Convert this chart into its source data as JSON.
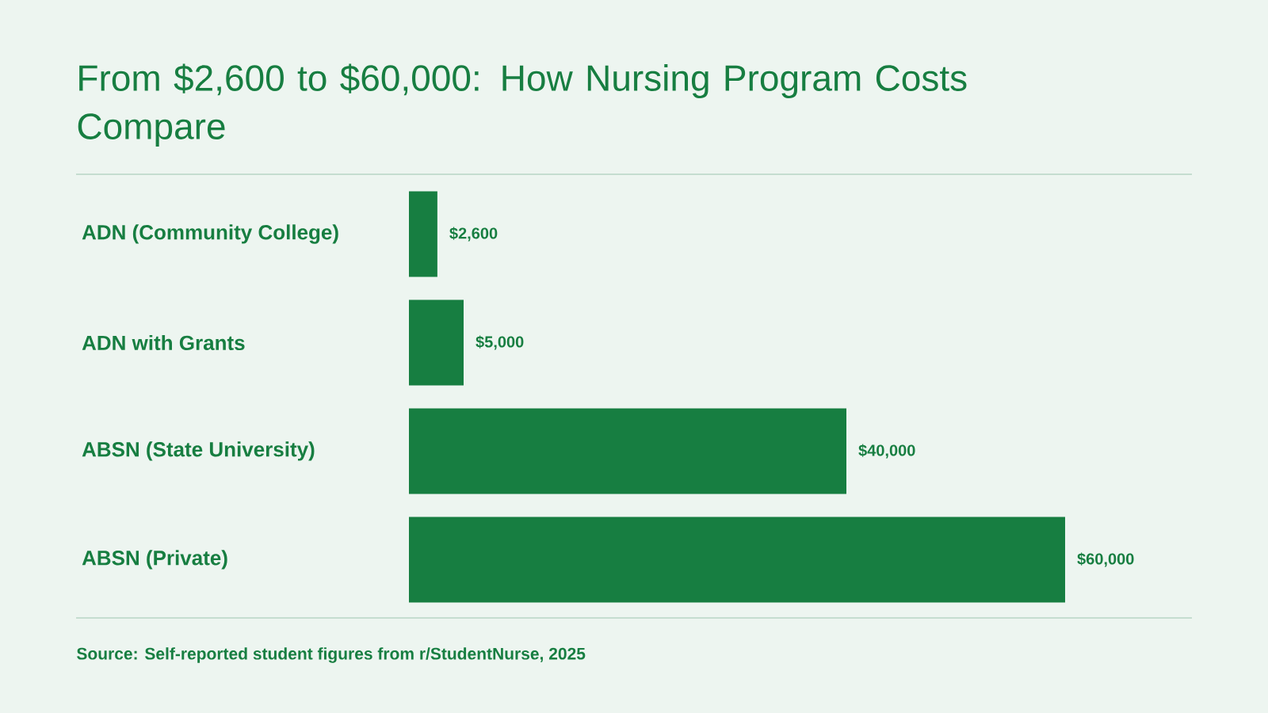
{
  "chart_data": {
    "type": "bar",
    "orientation": "horizontal",
    "title": "From $2,600 to $60,000: How Nursing Program Costs Compare",
    "categories": [
      "ADN (Community College)",
      "ADN with Grants",
      "ABSN (State University)",
      "ABSN (Private)"
    ],
    "values": [
      2600,
      5000,
      40000,
      60000
    ],
    "value_labels": [
      "$2,600",
      "$5,000",
      "$40,000",
      "$60,000"
    ],
    "color": "#177e41",
    "annotations": [
      "Source: Self-reported student figures from r/StudentNurse, 2025"
    ]
  }
}
